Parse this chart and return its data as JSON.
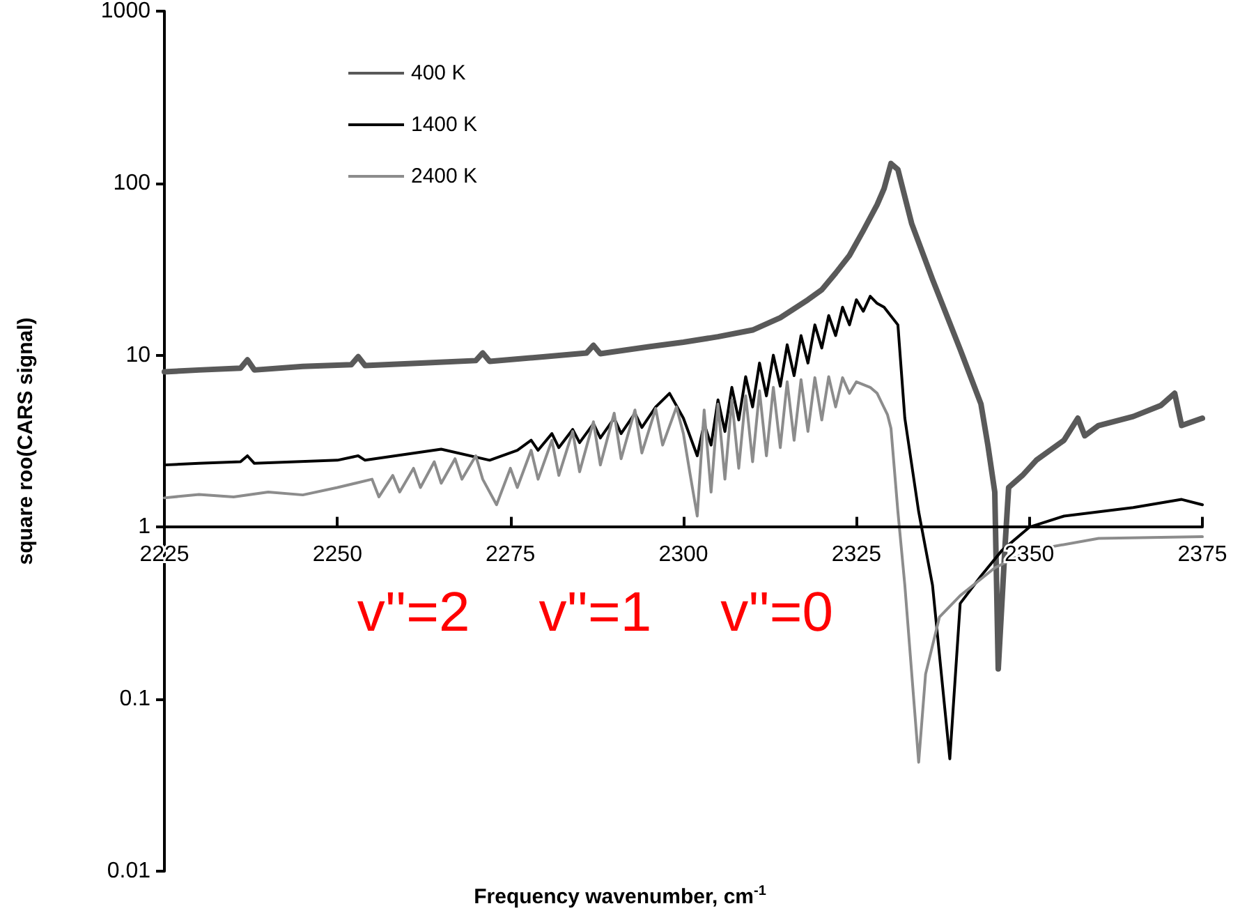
{
  "chart_data": {
    "type": "line",
    "xlabel": "Frequency wavenumber, cm$^{-1}$",
    "ylabel": "square roo(CARS signal)",
    "xlim": [
      2225,
      2375
    ],
    "xticks": [
      2225,
      2250,
      2275,
      2300,
      2325,
      2350,
      2375
    ],
    "ylim": [
      0.01,
      1000
    ],
    "yticks": [
      0.01,
      0.1,
      1,
      10,
      100,
      1000
    ],
    "log": "y",
    "grid": false,
    "legend": "top left",
    "marker": "none",
    "line_style": "solid",
    "annotations": [
      "v''=2",
      "v''=1",
      "v''=0"
    ],
    "series": [
      {
        "name": "400 K",
        "color": "#595959",
        "x": [
          2225,
          2230,
          2236,
          2237,
          2238,
          2245,
          2252,
          2253,
          2254,
          2262,
          2270,
          2271,
          2272,
          2280,
          2286,
          2287,
          2288,
          2295,
          2300,
          2305,
          2310,
          2314,
          2318,
          2320,
          2322,
          2324,
          2326,
          2328,
          2329,
          2330,
          2331,
          2333,
          2336,
          2340,
          2343,
          2344,
          2345,
          2345.5,
          2346.5,
          2347,
          2349,
          2351,
          2355,
          2357,
          2358,
          2360,
          2365,
          2369,
          2371,
          2372,
          2375
        ],
        "values": [
          8.0,
          8.2,
          8.4,
          9.4,
          8.2,
          8.6,
          8.8,
          9.8,
          8.7,
          9.0,
          9.3,
          10.3,
          9.2,
          9.8,
          10.3,
          11.4,
          10.2,
          11.2,
          11.9,
          12.8,
          14,
          16.5,
          21,
          24,
          30,
          38,
          53,
          75,
          93,
          130,
          120,
          58,
          27.6,
          10.8,
          5.2,
          3.0,
          1.6,
          0.15,
          0.8,
          1.7,
          2.0,
          2.45,
          3.2,
          4.3,
          3.4,
          3.9,
          4.4,
          5.1,
          6.0,
          3.9,
          4.3
        ]
      },
      {
        "name": "1400 K",
        "color": "#000000",
        "x": [
          2225,
          2230,
          2236,
          2237,
          2238,
          2250,
          2253,
          2254,
          2265,
          2272,
          2276,
          2278,
          2279,
          2281,
          2282,
          2284,
          2285,
          2287,
          2288,
          2290,
          2291,
          2293,
          2294,
          2296,
          2298,
          2300,
          2302,
          2303,
          2304,
          2305,
          2306,
          2307,
          2308,
          2309,
          2310,
          2311,
          2312,
          2313,
          2314,
          2315,
          2316,
          2317,
          2318,
          2319,
          2320,
          2321,
          2322,
          2323,
          2324,
          2325,
          2326,
          2327,
          2328,
          2329,
          2331,
          2332,
          2334,
          2336,
          2338.5,
          2340,
          2343,
          2346,
          2350,
          2355,
          2365,
          2372,
          2375
        ],
        "values": [
          2.3,
          2.35,
          2.4,
          2.6,
          2.35,
          2.45,
          2.6,
          2.45,
          2.84,
          2.45,
          2.8,
          3.2,
          2.8,
          3.5,
          2.9,
          3.7,
          3.1,
          4.0,
          3.3,
          4.3,
          3.5,
          4.6,
          3.8,
          5.0,
          6.0,
          4.3,
          2.6,
          4.0,
          3.0,
          5.5,
          3.6,
          6.5,
          4.2,
          7.5,
          5.0,
          9.0,
          5.8,
          10,
          6.6,
          11.5,
          7.6,
          13,
          9,
          15,
          11,
          17,
          13,
          19,
          15,
          21,
          18,
          22,
          20,
          19,
          15,
          4.3,
          1.23,
          0.46,
          0.045,
          0.36,
          0.52,
          0.73,
          1.0,
          1.16,
          1.3,
          1.45,
          1.35
        ]
      },
      {
        "name": "2400 K",
        "color": "#8c8c8c",
        "x": [
          2225,
          2230,
          2235,
          2240,
          2245,
          2250,
          2255,
          2256,
          2258,
          2259,
          2261,
          2262,
          2264,
          2265,
          2267,
          2268,
          2270,
          2271,
          2273,
          2275,
          2276,
          2278,
          2279,
          2281,
          2282,
          2284,
          2285,
          2287,
          2288,
          2290,
          2291,
          2293,
          2294,
          2296,
          2297,
          2299,
          2300,
          2301,
          2302,
          2303,
          2304,
          2305,
          2306,
          2307,
          2308,
          2309,
          2310,
          2311,
          2312,
          2313,
          2314,
          2315,
          2316,
          2317,
          2318,
          2319,
          2320,
          2321,
          2322,
          2323,
          2324,
          2325,
          2327,
          2328,
          2329.5,
          2330,
          2331,
          2332,
          2334,
          2335,
          2337,
          2340,
          2345,
          2350,
          2360,
          2375
        ],
        "values": [
          1.48,
          1.55,
          1.5,
          1.6,
          1.54,
          1.7,
          1.9,
          1.5,
          2.0,
          1.6,
          2.2,
          1.7,
          2.4,
          1.8,
          2.5,
          1.9,
          2.6,
          1.9,
          1.35,
          2.2,
          1.7,
          2.8,
          1.9,
          3.2,
          2.0,
          3.6,
          2.1,
          4.1,
          2.3,
          4.6,
          2.5,
          4.8,
          2.7,
          4.9,
          3.0,
          5.0,
          3.5,
          2.0,
          1.16,
          4.8,
          1.6,
          5.2,
          1.9,
          5.5,
          2.2,
          5.8,
          2.4,
          6.2,
          2.6,
          6.5,
          2.9,
          7.0,
          3.2,
          7.2,
          3.6,
          7.4,
          4.2,
          7.5,
          5.0,
          7.4,
          6.0,
          7.0,
          6.5,
          6.0,
          4.5,
          3.75,
          1.23,
          0.46,
          0.043,
          0.14,
          0.3,
          0.4,
          0.58,
          0.73,
          0.86,
          0.88
        ]
      }
    ]
  }
}
